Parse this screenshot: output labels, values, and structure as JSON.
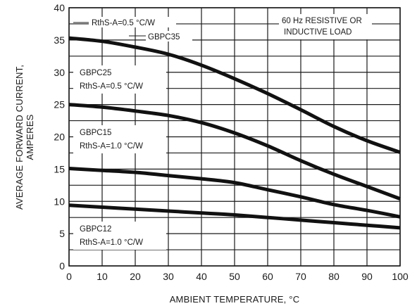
{
  "chart_data": {
    "type": "line",
    "xlabel": "AMBIENT TEMPERATURE, °C",
    "ylabel": [
      "AVERAGE FORWARD CURRENT,",
      "AMPERES"
    ],
    "xlim": [
      0,
      100
    ],
    "ylim": [
      0,
      40
    ],
    "x_ticks": [
      0,
      10,
      20,
      30,
      40,
      50,
      60,
      70,
      80,
      90,
      100
    ],
    "y_ticks": [
      0,
      5,
      10,
      15,
      20,
      25,
      30,
      35,
      40
    ],
    "grid": true,
    "series": [
      {
        "name": "GBPC35",
        "points": [
          [
            0,
            35.3
          ],
          [
            10,
            34.8
          ],
          [
            20,
            33.9
          ],
          [
            30,
            32.8
          ],
          [
            40,
            31.1
          ],
          [
            50,
            29.0
          ],
          [
            60,
            26.7
          ],
          [
            70,
            24.2
          ],
          [
            80,
            21.6
          ],
          [
            90,
            19.4
          ],
          [
            100,
            17.6
          ]
        ]
      },
      {
        "name": "GBPC25",
        "points": [
          [
            0,
            25.0
          ],
          [
            10,
            24.6
          ],
          [
            20,
            24.0
          ],
          [
            30,
            23.3
          ],
          [
            40,
            22.2
          ],
          [
            50,
            20.6
          ],
          [
            60,
            18.6
          ],
          [
            70,
            16.3
          ],
          [
            80,
            14.2
          ],
          [
            90,
            12.3
          ],
          [
            100,
            10.4
          ]
        ]
      },
      {
        "name": "GBPC15",
        "points": [
          [
            0,
            15.1
          ],
          [
            10,
            14.8
          ],
          [
            20,
            14.5
          ],
          [
            30,
            14.0
          ],
          [
            40,
            13.5
          ],
          [
            50,
            12.9
          ],
          [
            60,
            11.8
          ],
          [
            70,
            10.7
          ],
          [
            80,
            9.5
          ],
          [
            90,
            8.6
          ],
          [
            100,
            7.6
          ]
        ]
      },
      {
        "name": "GBPC12",
        "points": [
          [
            0,
            9.4
          ],
          [
            10,
            9.1
          ],
          [
            20,
            8.8
          ],
          [
            30,
            8.5
          ],
          [
            40,
            8.2
          ],
          [
            50,
            7.9
          ],
          [
            60,
            7.5
          ],
          [
            70,
            7.1
          ],
          [
            80,
            6.7
          ],
          [
            90,
            6.3
          ],
          [
            100,
            5.9
          ]
        ]
      }
    ],
    "annotations": {
      "rth_35": "RthS-A=0.5 °C/W",
      "gbpc35": "GBPC35",
      "load_line1": "60 Hz RESISTIVE OR",
      "load_line2": "INDUCTIVE LOAD",
      "gbpc25": "GBPC25",
      "rth_25": "RthS-A=0.5 °C/W",
      "gbpc15": "GBPC15",
      "rth_15": "RthS-A=1.0 °C/W",
      "gbpc12": "GBPC12",
      "rth_12": "RthS-A=1.0 °C/W"
    }
  }
}
